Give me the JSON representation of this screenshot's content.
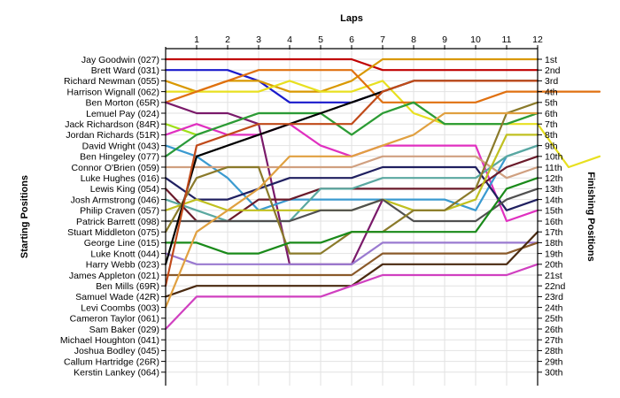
{
  "chart_data": {
    "type": "line",
    "title": "",
    "xlabel": "Laps",
    "ylabel_left": "Starting Positions",
    "ylabel_right": "Finishing Positions",
    "x_ticks": [
      1,
      2,
      3,
      4,
      5,
      6,
      7,
      8,
      9,
      10,
      11,
      12
    ],
    "grid": true,
    "drivers": [
      "Jay Goodwin (027)",
      "Brett Ward (031)",
      "Richard Newman (055)",
      "Harrison Wignall (062)",
      "Ben Morton (65R)",
      "Lemuel Pay (024)",
      "Jack Richardson (84R)",
      "Jordan Richards (51R)",
      "David Wright (043)",
      "Ben Hingeley (077)",
      "Connor O'Brien (059)",
      "Luke Hughes (016)",
      "Lewis King (054)",
      "Josh Armstrong (046)",
      "Philip Craven (057)",
      "Patrick Barrett (098)",
      "Stuart Middleton (075)",
      "George Line (015)",
      "Luke Knott (044)",
      "Harry Webb (023)",
      "James Appleton (021)",
      "Ben Mills (69R)",
      "Samuel Wade (42R)",
      "Levi Coombs (003)",
      "Cameron Taylor (061)",
      "Sam Baker (029)",
      "Michael Houghton (041)",
      "Joshua Bodley (045)",
      "Callum Hartridge (26R)",
      "Kerstin Lankey (064)"
    ],
    "finishing_labels": [
      "1st",
      "2nd",
      "3rd",
      "4th",
      "5th",
      "6th",
      "7th",
      "8th",
      "9th",
      "10th",
      "11th",
      "12th",
      "13th",
      "14th",
      "15th",
      "16th",
      "17th",
      "18th",
      "19th",
      "20th",
      "21st",
      "22nd",
      "23rd",
      "24th",
      "25th",
      "26th",
      "27th",
      "28th",
      "29th",
      "30th"
    ],
    "series": [
      {
        "color": "#c00000",
        "values": [
          1,
          1,
          1,
          1,
          1,
          1,
          1,
          2,
          2,
          2,
          2,
          2,
          2
        ]
      },
      {
        "color": "#1a1acc",
        "values": [
          2,
          2,
          2,
          3,
          5,
          5,
          5,
          4
        ]
      },
      {
        "color": "#d99800",
        "values": [
          3,
          4,
          3,
          3,
          4,
          4,
          3,
          1,
          1,
          1,
          1,
          1,
          1
        ]
      },
      {
        "color": "#e8e020",
        "values": [
          4,
          4,
          4,
          4,
          3,
          4,
          4,
          3,
          6,
          7,
          7,
          7,
          7,
          11,
          10
        ]
      },
      {
        "color": "#e07010",
        "values": [
          5,
          4,
          3,
          2,
          2,
          2,
          2,
          5,
          5,
          5,
          5,
          4,
          4,
          4,
          4
        ]
      },
      {
        "color": "#7a1a6a",
        "values": [
          5,
          6,
          6,
          7,
          20,
          20,
          20,
          14
        ]
      },
      {
        "color": "#9fe01a",
        "values": [
          7,
          8,
          7,
          6,
          6,
          6,
          8,
          6,
          5,
          7,
          7,
          7,
          6
        ]
      },
      {
        "color": "#e030c0",
        "values": [
          8,
          7,
          8,
          8,
          7,
          9,
          10,
          9,
          9,
          9,
          9,
          16,
          15
        ]
      },
      {
        "color": "#3a9ad0",
        "values": [
          9,
          10,
          12,
          15,
          14,
          14,
          14,
          14,
          14,
          14,
          15,
          10,
          9
        ]
      },
      {
        "color": "#2a9a3a",
        "values": [
          10,
          8,
          7,
          6,
          6,
          6,
          8,
          6,
          5,
          7,
          7,
          7,
          6
        ]
      },
      {
        "color": "#d0a080",
        "values": [
          11,
          11,
          11,
          11,
          11,
          11,
          11,
          10,
          10,
          10,
          10,
          12,
          11
        ]
      },
      {
        "color": "#202060",
        "values": [
          12,
          14,
          14,
          13,
          12,
          12,
          12,
          11,
          11,
          11,
          11,
          15,
          14
        ]
      },
      {
        "color": "#6a1a2a",
        "values": [
          13,
          16,
          16,
          14,
          14,
          13,
          13,
          13,
          13,
          13,
          13,
          11,
          10
        ]
      },
      {
        "color": "#5aa8a0",
        "values": [
          14,
          15,
          16,
          16,
          16,
          13,
          13,
          12,
          12,
          12,
          12,
          10,
          9
        ]
      },
      {
        "color": "#c0c020",
        "values": [
          15,
          14,
          15,
          15,
          15,
          15,
          15,
          14,
          15,
          15,
          14,
          8,
          8
        ]
      },
      {
        "color": "#505050",
        "values": [
          16,
          16,
          16,
          16,
          16,
          15,
          15,
          14,
          16,
          16,
          16,
          14,
          13
        ]
      },
      {
        "color": "#8a7a2a",
        "values": [
          17,
          12,
          11,
          11,
          19,
          19,
          17,
          17,
          15,
          15,
          13,
          6,
          5
        ]
      },
      {
        "color": "#1a8a1a",
        "values": [
          18,
          18,
          19,
          19,
          18,
          18,
          17,
          17,
          17,
          17,
          17,
          13,
          12
        ]
      },
      {
        "color": "#9a7ad0",
        "values": [
          19,
          20,
          20,
          20,
          20,
          20,
          20,
          18,
          18,
          18,
          18,
          18,
          18
        ]
      },
      {
        "color": "#000000",
        "values": [
          20,
          10,
          9,
          8,
          7,
          6,
          5,
          4,
          3,
          3,
          3,
          3,
          3
        ]
      },
      {
        "color": "#8a5a2a",
        "values": [
          21,
          21,
          21,
          21,
          21,
          21,
          21,
          19,
          19,
          19,
          19,
          19,
          18
        ]
      },
      {
        "color": "#c04a1a",
        "values": [
          22,
          9,
          8,
          7,
          7,
          7,
          7,
          4,
          3,
          3,
          3,
          3,
          3
        ]
      },
      {
        "color": "#4a2a10",
        "values": [
          23,
          22,
          22,
          22,
          22,
          22,
          22,
          20,
          20,
          20,
          20,
          20,
          17
        ]
      },
      {
        "color": "#e0a040",
        "values": [
          24,
          17,
          15,
          13,
          10,
          10,
          10,
          9,
          8,
          6,
          6,
          6,
          6
        ]
      },
      {
        "color": "#d040c0",
        "values": [
          26,
          23,
          23,
          23,
          23,
          23,
          22,
          21,
          21,
          21,
          21,
          21,
          20
        ]
      }
    ]
  }
}
